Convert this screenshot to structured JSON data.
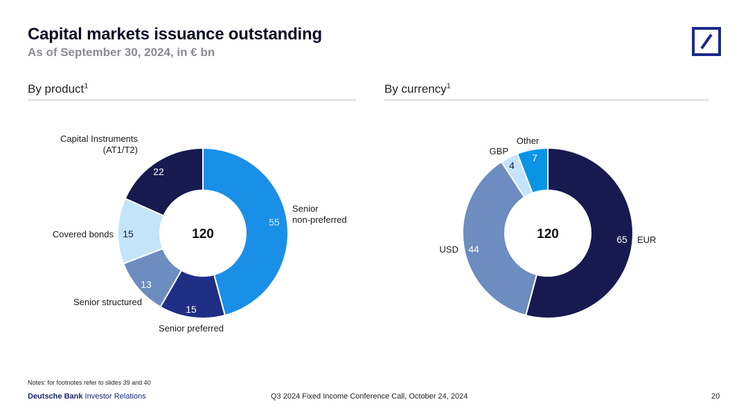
{
  "header": {
    "title": "Capital markets issuance outstanding",
    "subtitle": "As of September 30, 2024, in € bn"
  },
  "sections": {
    "product": {
      "title": "By product",
      "footnote": "1"
    },
    "currency": {
      "title": "By currency",
      "footnote": "1"
    }
  },
  "chart_data": [
    {
      "type": "pie",
      "title": "By product",
      "total_label": "120",
      "slices": [
        {
          "name": "Senior non-preferred",
          "label_lines": [
            "Senior",
            "non-preferred"
          ],
          "value": 55,
          "value_label": "55",
          "color": "#1a8fe8",
          "value_color": "#d9ecff"
        },
        {
          "name": "Senior preferred",
          "label_lines": [
            "Senior preferred"
          ],
          "value": 15,
          "value_label": "15",
          "color": "#1f2f86",
          "value_color": "#ffffff"
        },
        {
          "name": "Senior structured",
          "label_lines": [
            "Senior structured"
          ],
          "value": 13,
          "value_label": "13",
          "color": "#6d8cbf",
          "value_color": "#ffffff"
        },
        {
          "name": "Covered bonds",
          "label_lines": [
            "Covered bonds"
          ],
          "value": 15,
          "value_label": "15",
          "color": "#c3e4fb",
          "value_color": "#1c1c3a"
        },
        {
          "name": "Capital Instruments (AT1/T2)",
          "label_lines": [
            "Capital Instruments",
            "(AT1/T2)"
          ],
          "value": 22,
          "value_label": "22",
          "color": "#171a4f",
          "value_color": "#ffffff"
        }
      ]
    },
    {
      "type": "pie",
      "title": "By currency",
      "total_label": "120",
      "slices": [
        {
          "name": "EUR",
          "label_lines": [
            "EUR"
          ],
          "value": 65,
          "value_label": "65",
          "color": "#171a4f",
          "value_color": "#ffffff"
        },
        {
          "name": "USD",
          "label_lines": [
            "USD"
          ],
          "value": 44,
          "value_label": "44",
          "color": "#6d8cbf",
          "value_color": "#ffffff"
        },
        {
          "name": "GBP",
          "label_lines": [
            "GBP"
          ],
          "value": 4,
          "value_label": "4",
          "color": "#c3e4fb",
          "value_color": "#1c1c3a"
        },
        {
          "name": "Other",
          "label_lines": [
            "Other"
          ],
          "value": 7,
          "value_label": "7",
          "color": "#0a94e6",
          "value_color": "#ffffff"
        }
      ]
    }
  ],
  "footer": {
    "notes": "Notes: for footnotes refer to slides 39 and 40",
    "brand_bold": "Deutsche Bank",
    "brand_rest": " Investor Relations",
    "center": "Q3 2024 Fixed Income Conference Call, October 24, 2024",
    "page": "20"
  },
  "colors": {
    "brand": "#1b2a8c"
  }
}
